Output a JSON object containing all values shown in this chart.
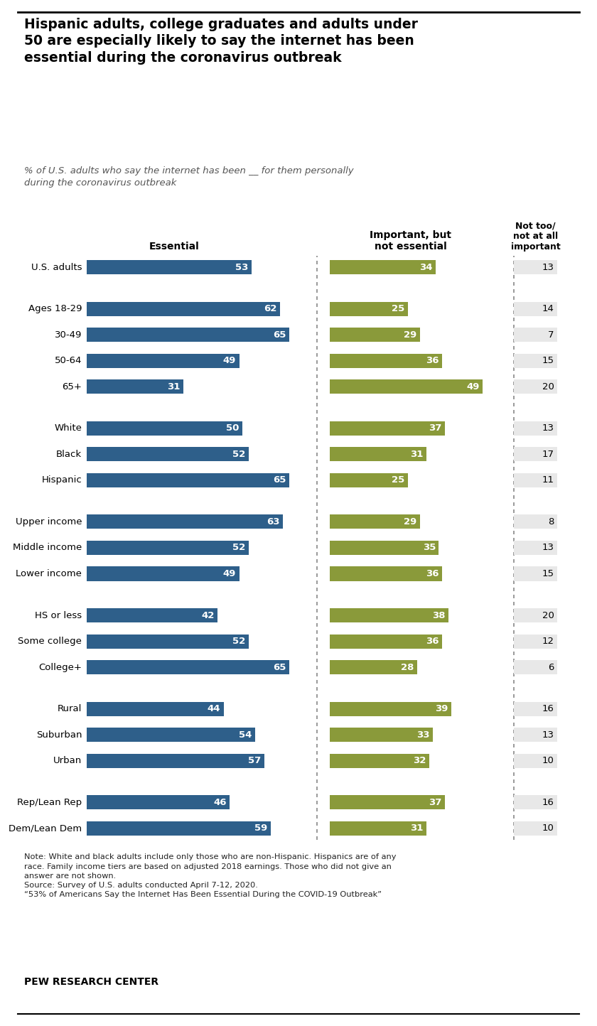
{
  "title": "Hispanic adults, college graduates and adults under\n50 are especially likely to say the internet has been\nessential during the coronavirus outbreak",
  "subtitle": "% of U.S. adults who say the internet has been __ for them personally\nduring the coronavirus outbreak",
  "col_headers": [
    "Essential",
    "Important, but\nnot essential",
    "Not too/\nnot at all\nimportant"
  ],
  "categories": [
    "U.S. adults",
    "Ages 18-29",
    "30-49",
    "50-64",
    "65+",
    "White",
    "Black",
    "Hispanic",
    "Upper income",
    "Middle income",
    "Lower income",
    "HS or less",
    "Some college",
    "College+",
    "Rural",
    "Suburban",
    "Urban",
    "Rep/Lean Rep",
    "Dem/Lean Dem"
  ],
  "essential": [
    53,
    62,
    65,
    49,
    31,
    50,
    52,
    65,
    63,
    52,
    49,
    42,
    52,
    65,
    44,
    54,
    57,
    46,
    59
  ],
  "important": [
    34,
    25,
    29,
    36,
    49,
    37,
    31,
    25,
    29,
    35,
    36,
    38,
    36,
    28,
    39,
    33,
    32,
    37,
    31
  ],
  "not_important": [
    13,
    14,
    7,
    15,
    20,
    13,
    17,
    11,
    8,
    13,
    15,
    20,
    12,
    6,
    16,
    13,
    10,
    16,
    10
  ],
  "group_ends": [
    0,
    4,
    7,
    10,
    13,
    16
  ],
  "essential_color": "#2E5F8A",
  "important_color": "#8A9A3A",
  "not_important_bg": "#E8E8E8",
  "note_text": "Note: White and black adults include only those who are non-Hispanic. Hispanics are of any\nrace. Family income tiers are based on adjusted 2018 earnings. Those who did not give an\nanswer are not shown.\nSource: Survey of U.S. adults conducted April 7-12, 2020.\n“53% of Americans Say the Internet Has Been Essential During the COVID-19 Outbreak”",
  "footer": "PEW RESEARCH CENTER",
  "background_color": "#FFFFFF"
}
